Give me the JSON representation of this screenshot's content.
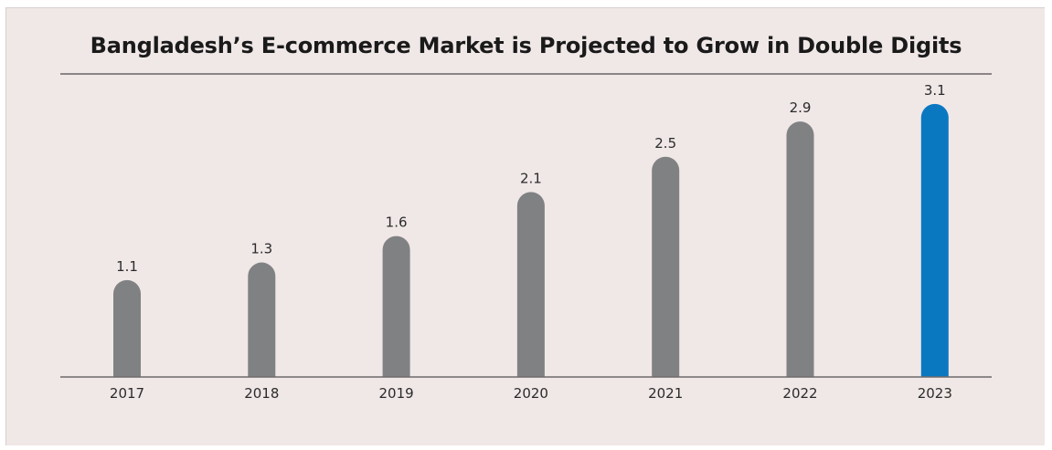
{
  "chart_data": {
    "type": "bar",
    "title": "Bangladesh’s E-commerce Market is Projected to Grow in Double Digits",
    "categories": [
      "2017",
      "2018",
      "2019",
      "2020",
      "2021",
      "2022",
      "2023"
    ],
    "values": [
      1.1,
      1.3,
      1.6,
      2.1,
      2.5,
      2.9,
      3.1
    ],
    "value_labels": [
      "1.1",
      "1.3",
      "1.6",
      "2.1",
      "2.5",
      "2.9",
      "3.1"
    ],
    "highlight_index": 6,
    "colors": {
      "bar": "#808183",
      "highlight": "#0a78c1",
      "background": "#f0e7e7",
      "axis": "#6e6a6a"
    },
    "grid": false,
    "legend": "none"
  }
}
